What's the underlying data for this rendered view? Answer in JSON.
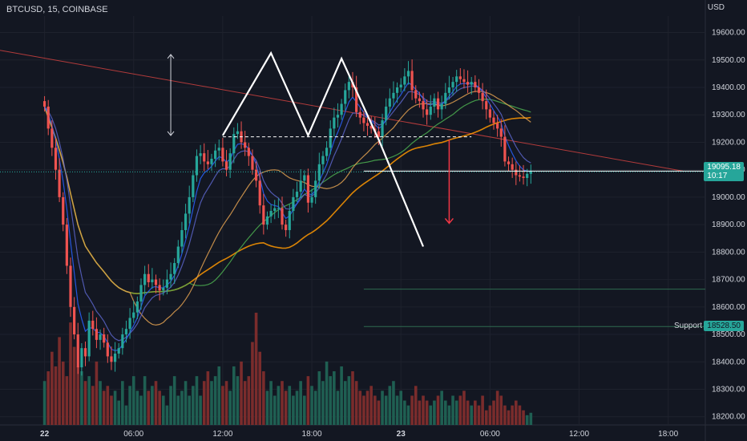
{
  "header": {
    "symbol_line": "BTCUSD, 15, COINBASE",
    "currency": "USD"
  },
  "price_tags": {
    "last_price": "19095.18",
    "last_time": "10:17",
    "support_label": "Support",
    "support_price": "18528.50"
  },
  "colors": {
    "up": "#26a69a",
    "down": "#ef5350",
    "ema_fast": "#2962ff",
    "ema_slow": "#5b64c8",
    "ma_orange": "#ff9800",
    "ma_green": "#4caf50",
    "ma_tan": "#e0a050",
    "trend_red": "#b23b3b",
    "pattern": "#ffffff"
  },
  "chart_data": {
    "type": "candlestick",
    "title": "BTCUSD, 15, COINBASE",
    "y_unit": "USD",
    "ylim": [
      18170,
      19660
    ],
    "y_ticks": [
      19600,
      19500,
      19400,
      19300,
      19200,
      19100,
      19000,
      18900,
      18800,
      18700,
      18600,
      18500,
      18400,
      18300,
      18200
    ],
    "y_tick_labels": [
      "19600.00",
      "19500.00",
      "19400.00",
      "19300.00",
      "19200.00",
      "19100.00",
      "19000.00",
      "18900.00",
      "18800.00",
      "18700.00",
      "18600.00",
      "18500.00",
      "18400.00",
      "18300.00",
      "18200.00"
    ],
    "x_ticks": [
      "22",
      "06:00",
      "12:00",
      "18:00",
      "23",
      "06:00",
      "12:00",
      "18:00"
    ],
    "x_tick_positions": [
      0,
      24,
      48,
      72,
      96,
      120,
      144,
      168
    ],
    "x_range": [
      -12,
      178
    ],
    "closes": [
      19330,
      19250,
      19180,
      19100,
      19000,
      18900,
      18750,
      18600,
      18500,
      18380,
      18450,
      18420,
      18550,
      18520,
      18480,
      18500,
      18470,
      18420,
      18400,
      18430,
      18450,
      18500,
      18520,
      18560,
      18580,
      18620,
      18680,
      18720,
      18690,
      18700,
      18680,
      18660,
      18670,
      18700,
      18720,
      18760,
      18820,
      18880,
      18940,
      19000,
      19080,
      19150,
      19160,
      19130,
      19120,
      19140,
      19170,
      19180,
      19130,
      19100,
      19160,
      19230,
      19240,
      19200,
      19180,
      19150,
      19100,
      19060,
      18970,
      18900,
      18930,
      18950,
      18960,
      18960,
      18900,
      18880,
      18950,
      19000,
      19020,
      19060,
      19080,
      18980,
      19000,
      19060,
      19120,
      19150,
      19180,
      19250,
      19290,
      19300,
      19340,
      19390,
      19420,
      19400,
      19310,
      19290,
      19270,
      19260,
      19250,
      19240,
      19220,
      19280,
      19330,
      19360,
      19380,
      19400,
      19410,
      19440,
      19460,
      19390,
      19360,
      19350,
      19320,
      19300,
      19330,
      19360,
      19320,
      19340,
      19380,
      19400,
      19420,
      19440,
      19430,
      19420,
      19410,
      19420,
      19400,
      19380,
      19350,
      19320,
      19290,
      19270,
      19250,
      19220,
      19130,
      19120,
      19100,
      19080,
      19075,
      19070,
      19085,
      19095
    ],
    "volume": {
      "max": 2300
    },
    "volume_series": [
      900,
      1100,
      1500,
      1200,
      1800,
      1300,
      1000,
      2100,
      1600,
      1200,
      1100,
      900,
      1000,
      800,
      1300,
      900,
      700,
      800,
      600,
      700,
      500,
      900,
      400,
      800,
      1000,
      700,
      600,
      1000,
      700,
      800,
      900,
      700,
      600,
      400,
      800,
      1000,
      600,
      700,
      900,
      600,
      800,
      1000,
      600,
      900,
      1100,
      900,
      1000,
      1200,
      800,
      900,
      700,
      1200,
      1000,
      1300,
      900,
      1000,
      1700,
      2300,
      1500,
      1100,
      700,
      900,
      600,
      800,
      900,
      700,
      800,
      600,
      700,
      900,
      600,
      1000,
      800,
      700,
      1100,
      900,
      1300,
      1000,
      1100,
      700,
      1200,
      900,
      1000,
      1100,
      900,
      700,
      600,
      700,
      800,
      600,
      500,
      700,
      600,
      800,
      900,
      600,
      700,
      500,
      400,
      600,
      800,
      500,
      600,
      500,
      400,
      500,
      600,
      700,
      500,
      400,
      600,
      500,
      600,
      700,
      500,
      400,
      500,
      400,
      600,
      300,
      400,
      500,
      700,
      600,
      400,
      300,
      400,
      500,
      400,
      300,
      200,
      250
    ],
    "levels": {
      "neckline": 19220,
      "last_price": 19095.18,
      "support_label": "Support",
      "support": 18528.5,
      "lower_line": 18665
    },
    "pattern_points": [
      [
        48,
        19225
      ],
      [
        61,
        19525
      ],
      [
        71,
        19225
      ],
      [
        80,
        19505
      ],
      [
        90,
        19210
      ],
      [
        102,
        18820
      ]
    ],
    "measure_arrow_up": [
      34,
      19225,
      19520
    ],
    "measure_arrow_down": [
      109,
      19210,
      18905
    ]
  }
}
